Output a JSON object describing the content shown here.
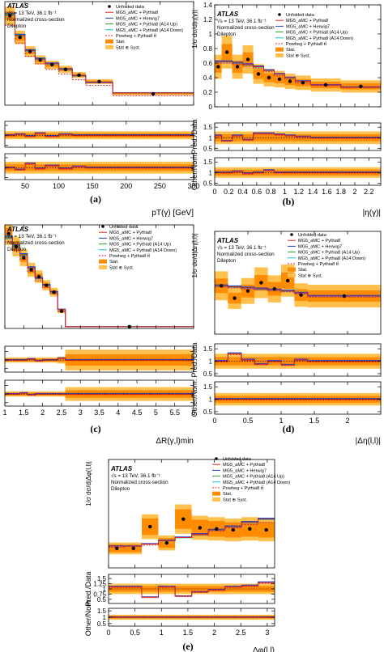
{
  "common": {
    "atlas": "ATLAS",
    "energy": "√s = 13 TeV, 36.1 fb⁻¹",
    "norm": "Normalized cross-section",
    "channel": "Dilepton",
    "ratio_top_label": "Pred./Data",
    "ratio_bot_label": "Other/Nom.",
    "legend": [
      {
        "key": "data",
        "label": "Unfolded data"
      },
      {
        "key": "pythia8",
        "label": "MG5_aMC + Pythia8"
      },
      {
        "key": "herwig7",
        "label": "MG5_aMC + Herwig7"
      },
      {
        "key": "a14up",
        "label": "MG5_aMC + Pythia8 (A14 Up)"
      },
      {
        "key": "a14down",
        "label": "MG5_aMC + Pythia8 (A14 Down)"
      },
      {
        "key": "powheg",
        "label": "Powheg + Pythia8 tt̄"
      },
      {
        "key": "stat",
        "label": "Stat."
      },
      {
        "key": "syst",
        "label": "Stat ⊕ Syst."
      }
    ],
    "colors": {
      "pythia8": "#d62728",
      "herwig7": "#1f3fd0",
      "a14up": "#2ca02c",
      "a14down": "#17becf",
      "powheg": "#d62728",
      "stat": "#ff8c00",
      "syst": "#ffc04d"
    }
  },
  "chart_data": [
    {
      "type": "line",
      "panel": "(a)",
      "xlabel": "pT(γ) [GeV]",
      "ylabel": "",
      "xlim": [
        20,
        300
      ],
      "xticks": [
        50,
        100,
        150,
        200,
        250,
        300
      ],
      "edges": [
        20,
        35,
        50,
        65,
        80,
        100,
        120,
        140,
        180,
        300
      ],
      "data": [
        0.95,
        0.72,
        0.57,
        0.48,
        0.43,
        0.38,
        0.32,
        0.25,
        0.12
      ],
      "pred": [
        0.96,
        0.74,
        0.58,
        0.49,
        0.44,
        0.38,
        0.31,
        0.24,
        0.13
      ],
      "powheg": [
        0.85,
        0.66,
        0.52,
        0.44,
        0.38,
        0.33,
        0.27,
        0.21,
        0.1
      ],
      "stat_rel": 0.05,
      "syst_rel": 0.1,
      "main_ylim": [
        0,
        1.1
      ],
      "main_yticks": [],
      "ratio_top_yticks": [
        1.5,
        1,
        0.5
      ],
      "ratio_bot_yticks": [
        1.5,
        1,
        0.5
      ],
      "ratio_ylim": [
        0.4,
        1.7
      ],
      "ratio_top": [
        1.0,
        1.05,
        0.95,
        1.1,
        0.95,
        1.05,
        1.0,
        1.0,
        1.0
      ],
      "ratio_bot": [
        1.0,
        0.9,
        1.2,
        0.95,
        1.1,
        0.95,
        1.05,
        1.0,
        1.0
      ],
      "err_top": [
        0.2,
        0.2,
        0.2,
        0.2,
        0.2,
        0.2,
        0.2,
        0.2,
        0.2
      ],
      "err_bot": [
        0.3,
        0.3,
        0.3,
        0.3,
        0.3,
        0.3,
        0.3,
        0.3,
        0.3
      ]
    },
    {
      "type": "line",
      "panel": "(b)",
      "xlabel": "|η(γ)|",
      "ylabel": "1/σ dσ/d|η(γ)|",
      "xlim": [
        0,
        2.37
      ],
      "xticks": [
        0,
        0.2,
        0.4,
        0.6,
        0.8,
        1,
        1.2,
        1.4,
        1.6,
        1.8,
        2,
        2.2
      ],
      "edges": [
        0,
        0.1,
        0.25,
        0.4,
        0.55,
        0.7,
        0.85,
        1.0,
        1.15,
        1.37,
        1.8,
        2.37
      ],
      "data": [
        0.55,
        0.75,
        0.55,
        0.65,
        0.45,
        0.4,
        0.38,
        0.35,
        0.33,
        0.3,
        0.28
      ],
      "pred": [
        0.62,
        0.62,
        0.6,
        0.58,
        0.55,
        0.5,
        0.45,
        0.4,
        0.35,
        0.3,
        0.27
      ],
      "powheg": [
        0.6,
        0.6,
        0.58,
        0.56,
        0.53,
        0.48,
        0.43,
        0.38,
        0.33,
        0.29,
        0.26
      ],
      "stat_rel": 0.15,
      "syst_rel": 0.3,
      "main_ylim": [
        0,
        1.4
      ],
      "main_yticks": [
        0,
        0.2,
        0.4,
        0.6,
        0.8,
        1,
        1.2,
        1.4
      ],
      "ratio_top_yticks": [
        1.5,
        1,
        0.5
      ],
      "ratio_bot_yticks": [
        1.5,
        1,
        0.5
      ],
      "ratio_ylim": [
        0.4,
        1.7
      ],
      "ratio_top": [
        1.1,
        0.85,
        1.1,
        0.9,
        1.2,
        1.2,
        1.15,
        1.1,
        1.05,
        1.0,
        1.0
      ],
      "ratio_bot": [
        1.0,
        1.0,
        1.05,
        0.95,
        1.0,
        1.1,
        1.0,
        1.0,
        1.0,
        1.0,
        1.0
      ],
      "err_top": [
        0.3,
        0.3,
        0.3,
        0.3,
        0.3,
        0.3,
        0.3,
        0.3,
        0.3,
        0.3,
        0.3
      ],
      "err_bot": [
        0.25,
        0.25,
        0.25,
        0.25,
        0.25,
        0.25,
        0.25,
        0.25,
        0.25,
        0.25,
        0.25
      ]
    },
    {
      "type": "line",
      "panel": "(c)",
      "xlabel": "ΔR(γ,l)min",
      "ylabel": "",
      "xlim": [
        1,
        6
      ],
      "xticks": [
        1,
        1.5,
        2,
        2.5,
        3,
        3.5,
        4,
        4.5,
        5,
        5.5,
        6
      ],
      "edges": [
        1,
        1.2,
        1.4,
        1.6,
        1.8,
        2.0,
        2.2,
        2.4,
        2.6,
        6
      ],
      "data": [
        1.1,
        0.95,
        0.82,
        0.68,
        0.6,
        0.5,
        0.42,
        0.2,
        0.02
      ],
      "pred": [
        1.05,
        0.95,
        0.85,
        0.7,
        0.58,
        0.5,
        0.42,
        0.22,
        0.02
      ],
      "powheg": [
        1.0,
        0.9,
        0.8,
        0.66,
        0.55,
        0.47,
        0.4,
        0.2,
        0.02
      ],
      "stat_rel": 0.06,
      "syst_rel": 0.12,
      "main_ylim": [
        0,
        1.2
      ],
      "main_yticks": [],
      "ratio_top_yticks": [
        1.5,
        1,
        0.5
      ],
      "ratio_bot_yticks": [
        1.5,
        1,
        0.5
      ],
      "ratio_ylim": [
        0.3,
        1.8
      ],
      "ratio_top": [
        1.0,
        1.0,
        1.0,
        1.05,
        0.95,
        1.0,
        1.0,
        1.1,
        1.0
      ],
      "ratio_bot": [
        1.0,
        1.0,
        1.05,
        0.95,
        1.0,
        1.0,
        1.0,
        1.0,
        1.0
      ],
      "err_top": [
        0.15,
        0.15,
        0.15,
        0.15,
        0.15,
        0.15,
        0.15,
        0.2,
        0.6
      ],
      "err_bot": [
        0.15,
        0.15,
        0.15,
        0.15,
        0.15,
        0.15,
        0.15,
        0.15,
        0.4
      ]
    },
    {
      "type": "line",
      "panel": "(d)",
      "xlabel": "|Δη(l,l)|",
      "ylabel": "1/σ dσ/d|Δη(l,l)|",
      "xlim": [
        0,
        2.5
      ],
      "xticks": [
        0,
        0.5,
        1,
        1.5,
        2
      ],
      "edges": [
        0,
        0.2,
        0.4,
        0.6,
        0.8,
        1.0,
        1.2,
        1.4,
        2.5
      ],
      "data": [
        0.47,
        0.35,
        0.42,
        0.5,
        0.44,
        0.52,
        0.38,
        0.37
      ],
      "pred": [
        0.47,
        0.46,
        0.45,
        0.44,
        0.43,
        0.42,
        0.4,
        0.37
      ],
      "powheg": [
        0.46,
        0.45,
        0.44,
        0.43,
        0.42,
        0.41,
        0.39,
        0.36
      ],
      "stat_rel": 0.15,
      "syst_rel": 0.3,
      "main_ylim": [
        0,
        1.0
      ],
      "main_yticks": [],
      "ratio_top_yticks": [
        1.5,
        1,
        0.5
      ],
      "ratio_bot_yticks": [
        1.5,
        1,
        0.5
      ],
      "ratio_ylim": [
        0.4,
        1.7
      ],
      "ratio_top": [
        1.0,
        1.3,
        1.05,
        0.88,
        1.0,
        0.85,
        1.05,
        1.0
      ],
      "ratio_bot": [
        1.0,
        1.0,
        1.0,
        1.0,
        1.0,
        1.0,
        1.0,
        1.0
      ],
      "err_top": [
        0.3,
        0.3,
        0.3,
        0.3,
        0.3,
        0.3,
        0.3,
        0.3
      ],
      "err_bot": [
        0.25,
        0.25,
        0.25,
        0.25,
        0.25,
        0.25,
        0.25,
        0.25
      ]
    },
    {
      "type": "line",
      "panel": "(e)",
      "xlabel": "Δφ(l,l)",
      "ylabel": "1/σ dσ/d|Δφ(l,l)|",
      "xlim": [
        0,
        3.14
      ],
      "xticks": [
        0,
        0.5,
        1,
        1.5,
        2,
        2.5,
        3
      ],
      "edges": [
        0,
        0.314,
        0.628,
        0.942,
        1.257,
        1.571,
        1.885,
        2.199,
        2.513,
        2.827,
        3.14
      ],
      "data": [
        0.18,
        0.18,
        0.38,
        0.23,
        0.45,
        0.37,
        0.36,
        0.35,
        0.36,
        0.35
      ],
      "pred": [
        0.2,
        0.2,
        0.22,
        0.25,
        0.28,
        0.31,
        0.35,
        0.38,
        0.42,
        0.45
      ],
      "powheg": [
        0.19,
        0.2,
        0.21,
        0.25,
        0.28,
        0.3,
        0.34,
        0.37,
        0.4,
        0.42
      ],
      "stat_rel": 0.2,
      "syst_rel": 0.3,
      "main_ylim": [
        0,
        1.0
      ],
      "main_yticks": [],
      "ratio_top_yticks": [
        1.5,
        1.25,
        1,
        0.75,
        0.5
      ],
      "ratio_bot_yticks": [
        1.5,
        1,
        0.5
      ],
      "ratio_ylim": [
        0.3,
        1.7
      ],
      "ratio_top": [
        1.1,
        1.1,
        0.6,
        1.1,
        0.65,
        0.85,
        0.95,
        1.1,
        1.15,
        1.3
      ],
      "ratio_bot": [
        1.0,
        1.0,
        1.0,
        1.0,
        1.0,
        1.0,
        1.0,
        1.0,
        1.0,
        1.0
      ],
      "err_top": [
        0.25,
        0.25,
        0.25,
        0.25,
        0.25,
        0.25,
        0.25,
        0.25,
        0.25,
        0.25
      ],
      "err_bot": [
        0.2,
        0.2,
        0.2,
        0.2,
        0.2,
        0.2,
        0.2,
        0.2,
        0.2,
        0.2
      ]
    }
  ]
}
